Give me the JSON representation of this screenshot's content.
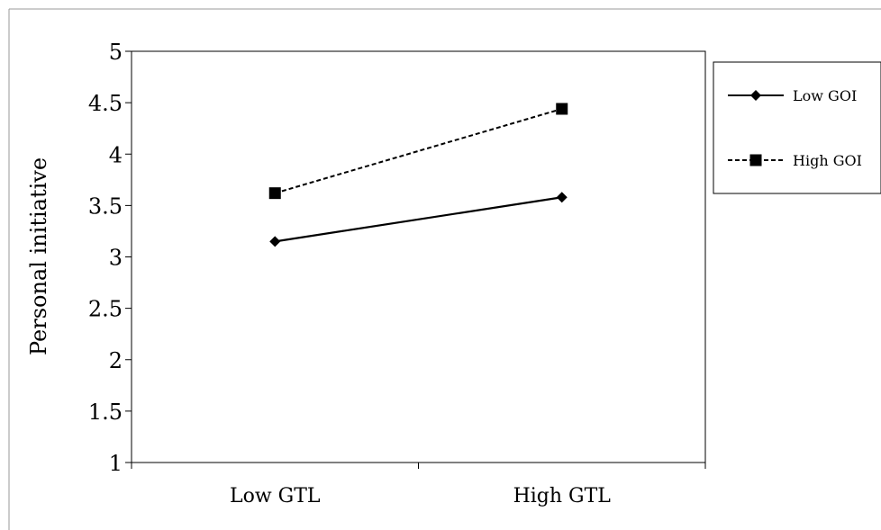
{
  "chart_data": {
    "type": "line",
    "title": "",
    "xlabel": "",
    "ylabel": "Personal initiative",
    "categories": [
      "Low GTL",
      "High GTL"
    ],
    "ylim": [
      1,
      5
    ],
    "yticks": [
      "1",
      "1.5",
      "2",
      "2.5",
      "3",
      "3.5",
      "4",
      "4.5",
      "5"
    ],
    "grid": false,
    "legend_position": "right",
    "series": [
      {
        "name": "Low GOI",
        "values": [
          3.15,
          3.58
        ],
        "line_style": "solid",
        "marker": "diamond",
        "color": "#000000"
      },
      {
        "name": "High GOI",
        "values": [
          3.62,
          4.44
        ],
        "line_style": "dashed",
        "marker": "square",
        "color": "#000000"
      }
    ]
  }
}
